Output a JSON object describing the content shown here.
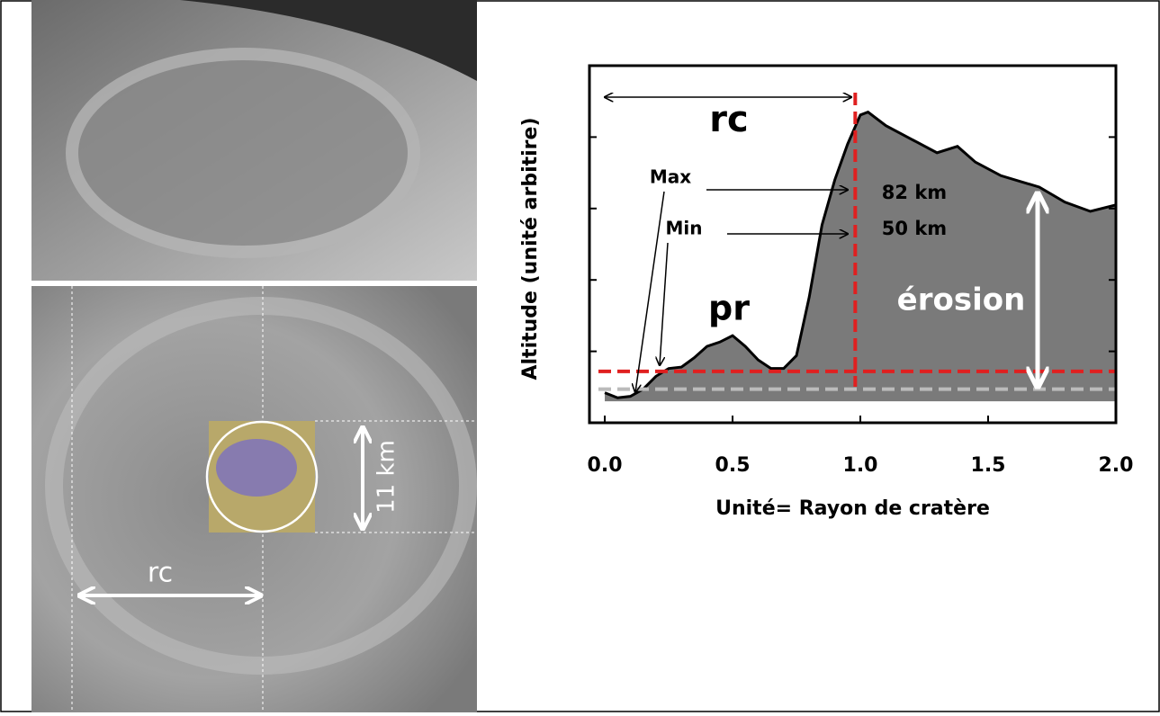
{
  "chart_data": {
    "type": "area",
    "ylabel": "Altitude (unité arbitire)",
    "xlabel": "Unité= Rayon de cratère",
    "x": [
      0,
      0.05,
      0.1,
      0.15,
      0.2,
      0.25,
      0.3,
      0.35,
      0.4,
      0.45,
      0.5,
      0.55,
      0.6,
      0.65,
      0.7,
      0.75,
      0.8,
      0.85,
      0.9,
      0.95,
      1.0,
      1.03,
      1.1,
      1.2,
      1.3,
      1.38,
      1.45,
      1.55,
      1.7,
      1.8,
      1.9,
      2.0
    ],
    "values": [
      0.42,
      0.35,
      0.37,
      0.47,
      0.65,
      0.76,
      0.78,
      0.91,
      1.07,
      1.13,
      1.22,
      1.07,
      0.88,
      0.76,
      0.76,
      0.94,
      1.76,
      2.77,
      3.4,
      3.9,
      4.31,
      4.35,
      4.16,
      3.97,
      3.78,
      3.87,
      3.65,
      3.46,
      3.3,
      3.09,
      2.96,
      3.05
    ],
    "color": "#7a7a7a",
    "xlim": [
      -0.06,
      2.0
    ],
    "ylim": [
      0,
      5
    ],
    "xticks": [
      {
        "value": 0,
        "label": "0.0"
      },
      0.5,
      {
        "value": 1,
        "label": "1.0"
      },
      1.5,
      {
        "value": 2,
        "label": "2.0"
      }
    ],
    "yticks": [
      1,
      2,
      3,
      4
    ],
    "reference_lines": [
      {
        "axis": "y",
        "value": 0.72,
        "color": "#e02020"
      },
      {
        "axis": "y",
        "value": 0.47,
        "color": "#bbbbbb"
      },
      {
        "axis": "x",
        "value": 0.98,
        "color": "#e02020"
      }
    ],
    "annotations": [
      "rc",
      "Max",
      "Min",
      "82 km",
      "50 km",
      "pr",
      "érosion"
    ]
  },
  "image_labels": [
    "rc",
    "11 km"
  ]
}
